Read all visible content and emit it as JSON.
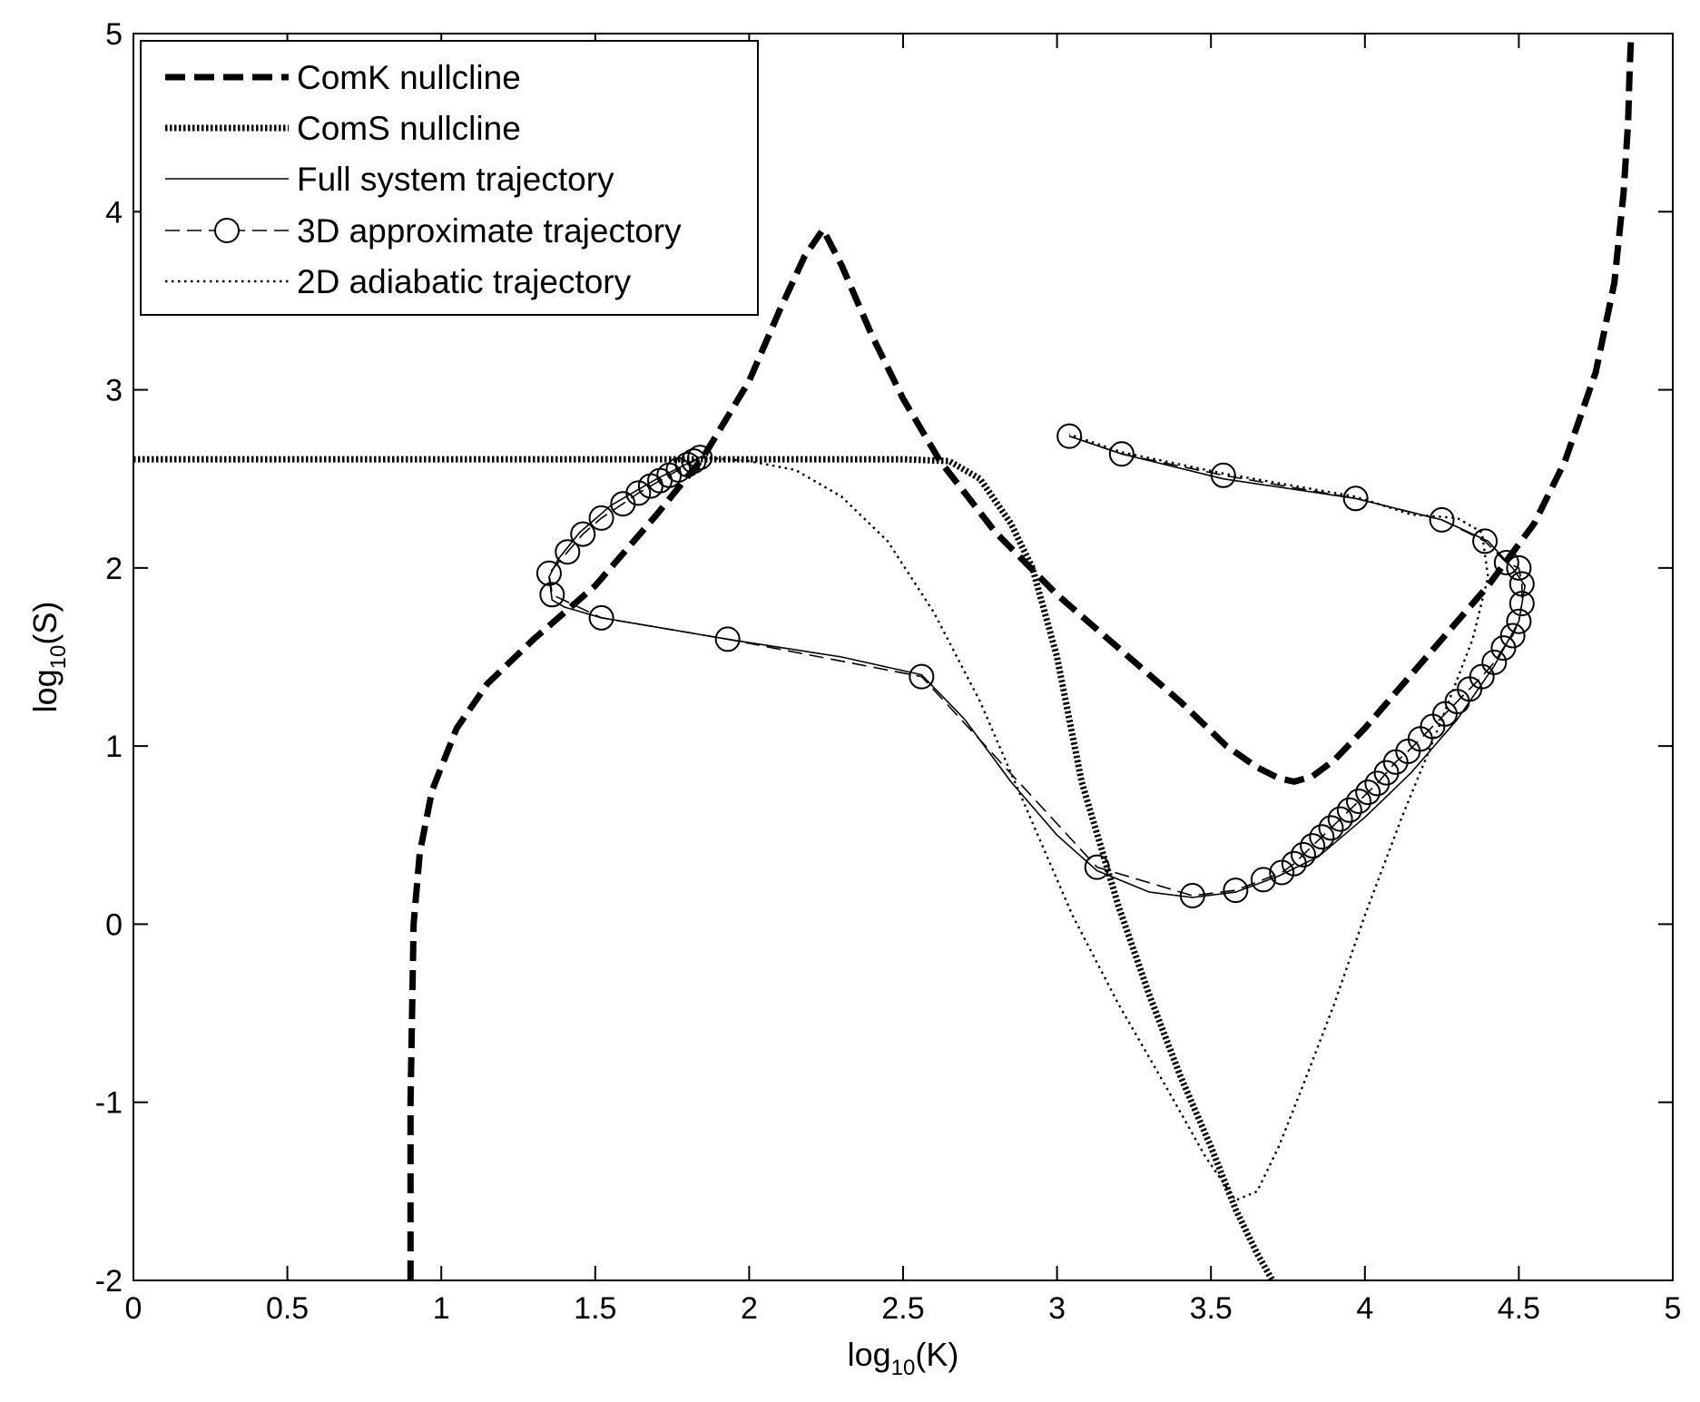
{
  "chart_data": {
    "type": "line",
    "xlabel": {
      "main": "log",
      "sub": "10",
      "rest": "(K)"
    },
    "ylabel": {
      "main": "log",
      "sub": "10",
      "rest": "(S)"
    },
    "xlim": [
      0,
      5
    ],
    "ylim": [
      -2,
      5
    ],
    "x_ticks": [
      0,
      0.5,
      1,
      1.5,
      2,
      2.5,
      3,
      3.5,
      4,
      4.5,
      5
    ],
    "x_tick_labels": [
      "0",
      "0.5",
      "1",
      "1.5",
      "2",
      "2.5",
      "3",
      "3.5",
      "4",
      "4.5",
      "5"
    ],
    "y_ticks": [
      -2,
      -1,
      0,
      1,
      2,
      3,
      4,
      5
    ],
    "y_tick_labels": [
      "-2",
      "-1",
      "0",
      "1",
      "2",
      "3",
      "4",
      "5"
    ],
    "grid": false,
    "legend_position": "top-left",
    "series": [
      {
        "name": "ComK nullcline",
        "style": "bold-dashed",
        "x": [
          0.9,
          0.9,
          0.905,
          0.91,
          0.93,
          0.97,
          1.05,
          1.15,
          1.3,
          1.5,
          1.7,
          1.85,
          2.0,
          2.1,
          2.18,
          2.24,
          2.3,
          2.4,
          2.5,
          2.62,
          2.8,
          3.0,
          3.2,
          3.4,
          3.55,
          3.65,
          3.72,
          3.77,
          3.83,
          3.9,
          4.0,
          4.1,
          4.25,
          4.4,
          4.55,
          4.65,
          4.75,
          4.81,
          4.84,
          4.855,
          4.86,
          4.865
        ],
        "y": [
          -2.0,
          -1.0,
          -0.5,
          0.0,
          0.4,
          0.75,
          1.1,
          1.35,
          1.6,
          1.9,
          2.3,
          2.62,
          3.05,
          3.45,
          3.75,
          3.9,
          3.7,
          3.3,
          2.95,
          2.6,
          2.2,
          1.85,
          1.55,
          1.25,
          1.0,
          0.88,
          0.82,
          0.8,
          0.83,
          0.92,
          1.1,
          1.3,
          1.6,
          1.9,
          2.25,
          2.6,
          3.1,
          3.6,
          4.1,
          4.5,
          4.8,
          5.0
        ]
      },
      {
        "name": "ComS nullcline",
        "style": "bold-dotted",
        "x": [
          0.0,
          2.0,
          2.5,
          2.65,
          2.75,
          2.85,
          2.92,
          3.0,
          3.08,
          3.2,
          3.3,
          3.4,
          3.5,
          3.58,
          3.65,
          3.7
        ],
        "y": [
          2.61,
          2.61,
          2.61,
          2.6,
          2.5,
          2.25,
          2.0,
          1.5,
          0.8,
          0.1,
          -0.4,
          -0.85,
          -1.25,
          -1.6,
          -1.85,
          -2.0
        ]
      },
      {
        "name": "Full system trajectory",
        "style": "thin-solid",
        "x": [
          1.85,
          1.7,
          1.55,
          1.45,
          1.38,
          1.35,
          1.36,
          1.4,
          1.52,
          1.93,
          2.3,
          2.56,
          2.7,
          2.85,
          3.0,
          3.13,
          3.3,
          3.44,
          3.58,
          3.72,
          3.85,
          4.0,
          4.15,
          4.3,
          4.42,
          4.5,
          4.52,
          4.48,
          4.4,
          4.25,
          3.97,
          3.54,
          3.21,
          3.04
        ],
        "y": [
          2.63,
          2.5,
          2.35,
          2.2,
          2.05,
          1.95,
          1.82,
          1.78,
          1.72,
          1.6,
          1.5,
          1.4,
          1.15,
          0.8,
          0.5,
          0.3,
          0.18,
          0.15,
          0.18,
          0.27,
          0.38,
          0.6,
          0.85,
          1.15,
          1.45,
          1.7,
          1.9,
          2.0,
          2.15,
          2.27,
          2.39,
          2.5,
          2.64,
          2.74
        ]
      },
      {
        "name": "3D approximate trajectory",
        "style": "dashed-circle-markers",
        "x": [
          1.84,
          1.82,
          1.8,
          1.77,
          1.74,
          1.71,
          1.68,
          1.64,
          1.59,
          1.52,
          1.46,
          1.41,
          1.35,
          1.36,
          1.52,
          1.93,
          2.56,
          3.13,
          3.44,
          3.58,
          3.67,
          3.73,
          3.77,
          3.8,
          3.83,
          3.86,
          3.89,
          3.92,
          3.95,
          3.98,
          4.01,
          4.04,
          4.07,
          4.1,
          4.14,
          4.18,
          4.22,
          4.26,
          4.3,
          4.34,
          4.38,
          4.42,
          4.45,
          4.48,
          4.5,
          4.51,
          4.51,
          4.5,
          4.46,
          4.39,
          4.25,
          3.97,
          3.54,
          3.21,
          3.04
        ],
        "y": [
          2.62,
          2.6,
          2.58,
          2.55,
          2.52,
          2.49,
          2.46,
          2.42,
          2.36,
          2.28,
          2.19,
          2.09,
          1.97,
          1.85,
          1.72,
          1.6,
          1.39,
          0.32,
          0.16,
          0.19,
          0.25,
          0.29,
          0.34,
          0.39,
          0.44,
          0.49,
          0.54,
          0.59,
          0.64,
          0.69,
          0.74,
          0.79,
          0.85,
          0.91,
          0.97,
          1.04,
          1.11,
          1.18,
          1.25,
          1.32,
          1.39,
          1.47,
          1.55,
          1.62,
          1.7,
          1.8,
          1.91,
          2.0,
          2.03,
          2.15,
          2.27,
          2.39,
          2.52,
          2.64,
          2.74
        ]
      },
      {
        "name": "2D adiabatic trajectory",
        "style": "thin-dotted",
        "x": [
          1.85,
          2.0,
          2.15,
          2.3,
          2.45,
          2.6,
          2.75,
          2.9,
          3.05,
          3.2,
          3.35,
          3.48,
          3.58,
          3.65,
          3.72,
          3.8,
          3.9,
          4.0,
          4.12,
          4.25,
          4.35,
          4.4,
          4.38,
          4.3,
          4.15,
          3.97,
          3.54,
          3.21,
          3.04
        ],
        "y": [
          2.62,
          2.6,
          2.55,
          2.4,
          2.15,
          1.75,
          1.25,
          0.65,
          0.05,
          -0.45,
          -0.9,
          -1.3,
          -1.55,
          -1.5,
          -1.25,
          -0.9,
          -0.45,
          0.05,
          0.6,
          1.15,
          1.6,
          1.95,
          2.2,
          2.28,
          2.3,
          2.4,
          2.53,
          2.65,
          2.75
        ]
      }
    ]
  }
}
